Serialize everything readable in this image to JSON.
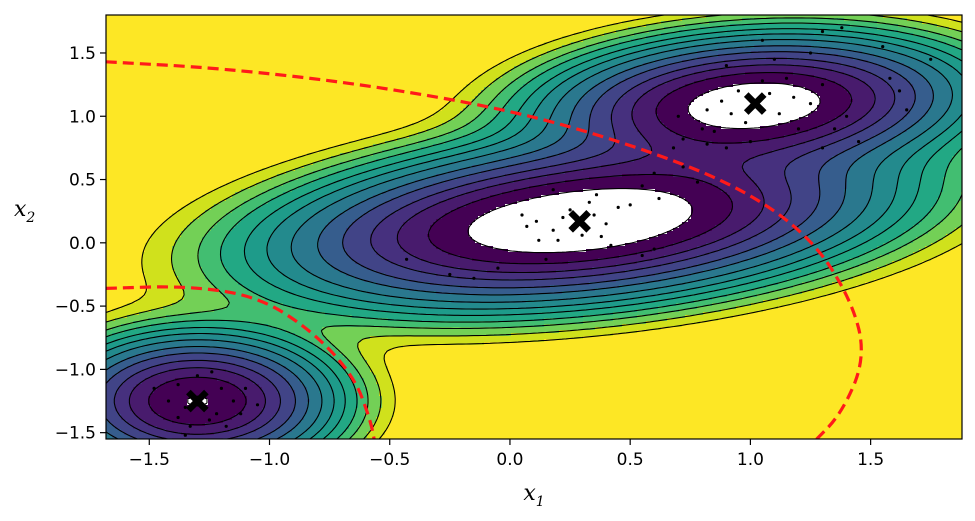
{
  "chart_data": {
    "type": "contour",
    "xlabel": "x",
    "xlabel_sub": "1",
    "ylabel": "x",
    "ylabel_sub": "2",
    "xlim": [
      -1.68,
      1.88
    ],
    "ylim": [
      -1.55,
      1.8
    ],
    "x_ticks": [
      -1.5,
      -1.0,
      -0.5,
      0.0,
      0.5,
      1.0,
      1.5
    ],
    "x_tick_labels": [
      "−1.5",
      "−1.0",
      "−0.5",
      "0.0",
      "0.5",
      "1.0",
      "1.5"
    ],
    "y_ticks": [
      -1.5,
      -1.0,
      -0.5,
      0.0,
      0.5,
      1.0,
      1.5
    ],
    "y_tick_labels": [
      "−1.5",
      "−1.0",
      "−0.5",
      "0.0",
      "0.5",
      "1.0",
      "1.5"
    ],
    "cluster_centers": [
      {
        "x": -1.3,
        "y": -1.25
      },
      {
        "x": 0.29,
        "y": 0.17
      },
      {
        "x": 1.02,
        "y": 1.1
      }
    ],
    "instances": [
      [
        0.07,
        0.13
      ],
      [
        0.11,
        0.17
      ],
      [
        0.18,
        0.1
      ],
      [
        0.22,
        0.2
      ],
      [
        0.3,
        0.06
      ],
      [
        0.35,
        0.22
      ],
      [
        0.4,
        0.15
      ],
      [
        0.45,
        0.28
      ],
      [
        0.12,
        0.02
      ],
      [
        0.2,
        0.02
      ],
      [
        0.25,
        0.26
      ],
      [
        0.33,
        0.32
      ],
      [
        0.15,
        -0.13
      ],
      [
        0.38,
        0.05
      ],
      [
        0.42,
        -0.02
      ],
      [
        0.05,
        0.22
      ],
      [
        0.26,
        0.13
      ],
      [
        0.36,
        0.38
      ],
      [
        0.18,
        0.42
      ],
      [
        0.55,
        0.45
      ],
      [
        0.6,
        0.55
      ],
      [
        0.62,
        0.35
      ],
      [
        0.5,
        0.3
      ],
      [
        0.72,
        0.6
      ],
      [
        0.78,
        0.48
      ],
      [
        0.68,
        0.75
      ],
      [
        0.82,
        0.78
      ],
      [
        -0.43,
        -0.13
      ],
      [
        -0.25,
        -0.25
      ],
      [
        -0.15,
        -0.28
      ],
      [
        -0.05,
        -0.2
      ],
      [
        0.55,
        -0.1
      ],
      [
        0.6,
        -0.05
      ],
      [
        0.95,
        1.2
      ],
      [
        1.0,
        1.05
      ],
      [
        1.08,
        1.18
      ],
      [
        1.12,
        1.02
      ],
      [
        0.92,
        1.02
      ],
      [
        1.05,
        1.28
      ],
      [
        1.18,
        1.15
      ],
      [
        0.88,
        1.12
      ],
      [
        0.98,
        0.95
      ],
      [
        1.15,
        1.3
      ],
      [
        1.25,
        1.1
      ],
      [
        0.82,
        1.05
      ],
      [
        0.9,
        1.4
      ],
      [
        1.1,
        1.45
      ],
      [
        1.3,
        1.25
      ],
      [
        1.4,
        1.0
      ],
      [
        0.7,
        1.0
      ],
      [
        0.72,
        0.82
      ],
      [
        1.35,
        0.9
      ],
      [
        1.45,
        0.8
      ],
      [
        1.58,
        1.3
      ],
      [
        1.62,
        1.2
      ],
      [
        1.65,
        1.05
      ],
      [
        1.3,
        1.67
      ],
      [
        1.38,
        1.7
      ],
      [
        1.75,
        1.45
      ],
      [
        1.55,
        1.55
      ],
      [
        1.05,
        1.6
      ],
      [
        1.25,
        1.5
      ],
      [
        0.85,
        0.88
      ],
      [
        1.2,
        0.9
      ],
      [
        0.9,
        0.75
      ],
      [
        1.0,
        0.8
      ],
      [
        0.8,
        0.9
      ],
      [
        1.3,
        0.75
      ],
      [
        -1.28,
        -1.2
      ],
      [
        -1.35,
        -1.3
      ],
      [
        -1.22,
        -1.35
      ],
      [
        -1.38,
        -1.12
      ],
      [
        -1.25,
        -1.4
      ],
      [
        -1.15,
        -1.25
      ],
      [
        -1.42,
        -1.25
      ],
      [
        -1.3,
        -1.05
      ],
      [
        -1.2,
        -1.15
      ],
      [
        -1.33,
        -1.45
      ],
      [
        -1.18,
        -1.45
      ],
      [
        -1.1,
        -1.15
      ],
      [
        -1.38,
        -1.38
      ],
      [
        -1.12,
        -1.35
      ],
      [
        -1.24,
        -1.02
      ],
      [
        -1.48,
        -1.15
      ],
      [
        -1.05,
        -1.28
      ],
      [
        -1.35,
        -1.52
      ]
    ],
    "levels": [
      "#fde725",
      "#d0e11c",
      "#73d056",
      "#42be71",
      "#22a884",
      "#1e9b8a",
      "#238a8d",
      "#2a788e",
      "#365d8d",
      "#414487",
      "#46307e",
      "#481b6d",
      "#440154",
      "#ffffff"
    ],
    "boundary_color": "#ff1a1a"
  }
}
